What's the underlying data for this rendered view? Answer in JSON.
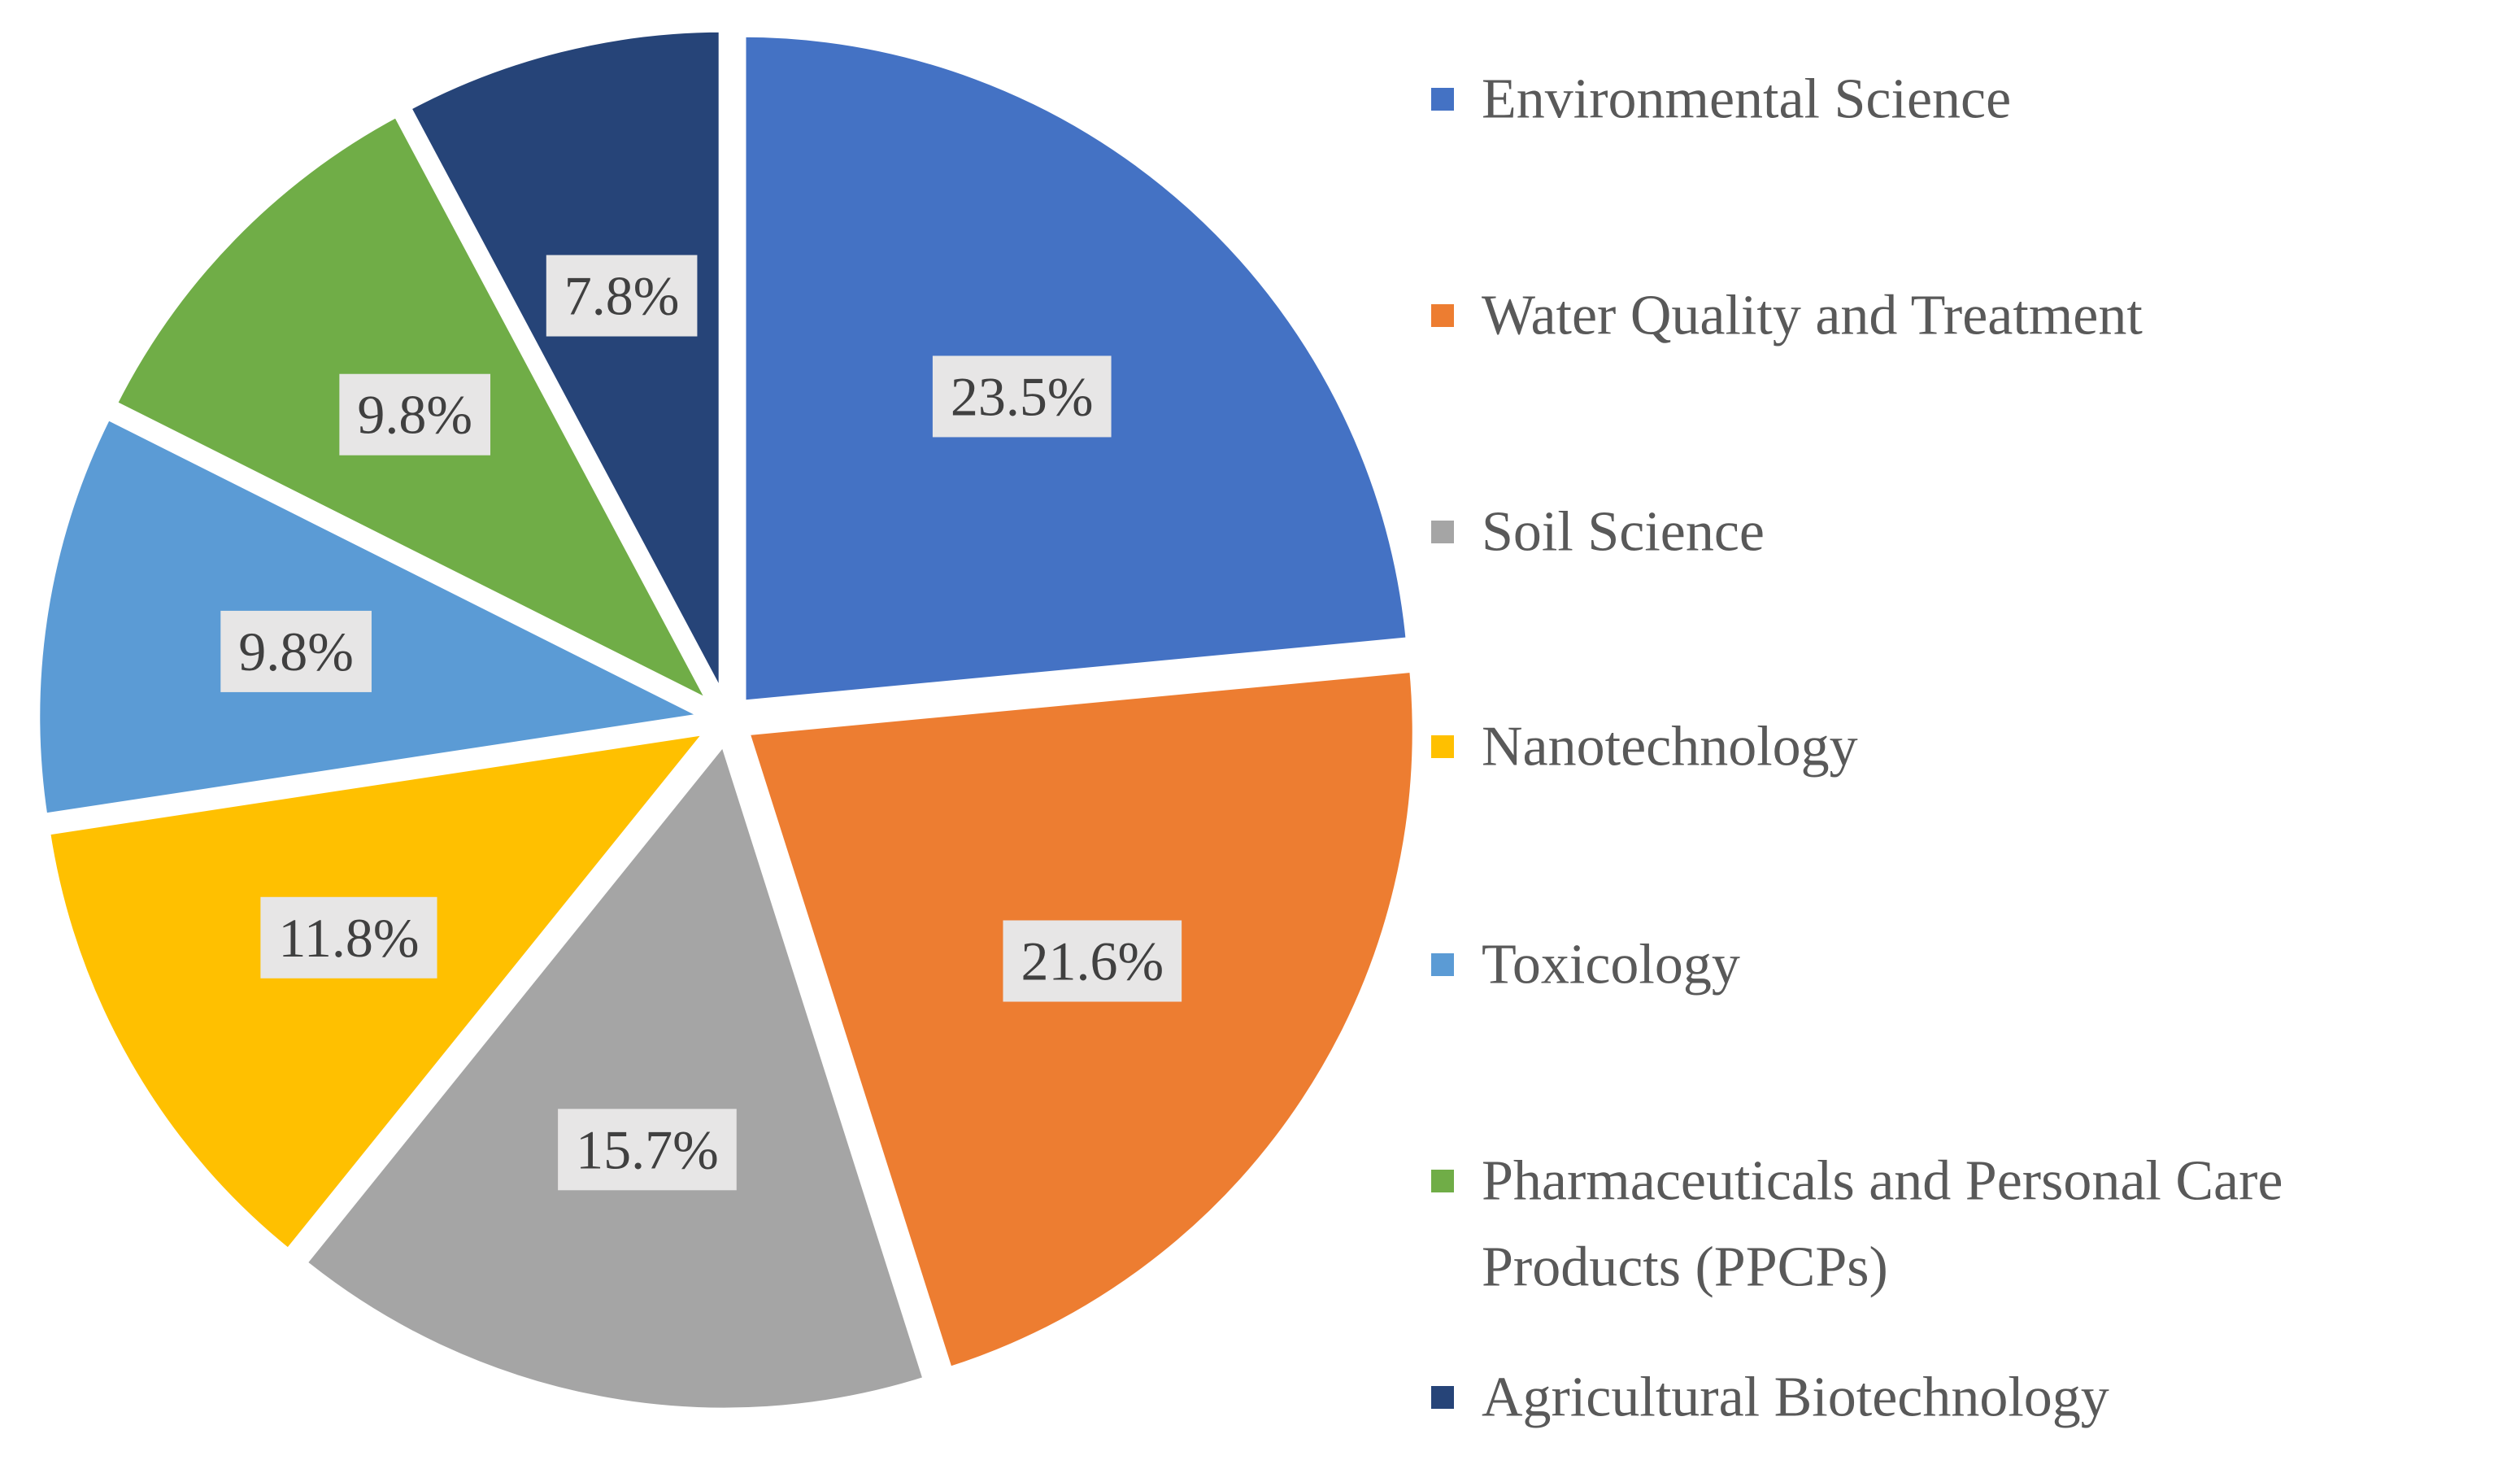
{
  "chart_data": {
    "type": "pie",
    "title": "",
    "legend_position": "right",
    "exploded": true,
    "start_angle_deg": 0,
    "direction": "clockwise",
    "slices": [
      {
        "name": "Environmental Science",
        "value": 23.5,
        "label": "23.5%",
        "color": "#4472c4"
      },
      {
        "name": "Water Quality and Treatment",
        "value": 21.6,
        "label": "21.6%",
        "color": "#ed7d31"
      },
      {
        "name": "Soil Science",
        "value": 15.7,
        "label": "15.7%",
        "color": "#a5a5a5"
      },
      {
        "name": "Nanotechnology",
        "value": 11.8,
        "label": "11.8%",
        "color": "#ffc000"
      },
      {
        "name": "Toxicology",
        "value": 9.8,
        "label": "9.8%",
        "color": "#5b9bd5"
      },
      {
        "name": "Pharmaceuticals and Personal Care Products (PPCPs)",
        "value": 9.8,
        "label": "9.8%",
        "color": "#70ad47"
      },
      {
        "name": "Agricultural Biotechnology",
        "value": 7.8,
        "label": "7.8%",
        "color": "#264478"
      }
    ],
    "legend": [
      {
        "lines": [
          "Environmental Science"
        ],
        "color": "#4472c4"
      },
      {
        "lines": [
          "Water Quality and Treatment"
        ],
        "color": "#ed7d31"
      },
      {
        "lines": [
          "Soil Science"
        ],
        "color": "#a5a5a5"
      },
      {
        "lines": [
          "Nanotechnology"
        ],
        "color": "#ffc000"
      },
      {
        "lines": [
          "Toxicology"
        ],
        "color": "#5b9bd5"
      },
      {
        "lines": [
          "Pharmaceuticals and Personal Care",
          "Products (PPCPs)"
        ],
        "color": "#70ad47"
      },
      {
        "lines": [
          "Agricultural Biotechnology"
        ],
        "color": "#264478"
      }
    ]
  }
}
